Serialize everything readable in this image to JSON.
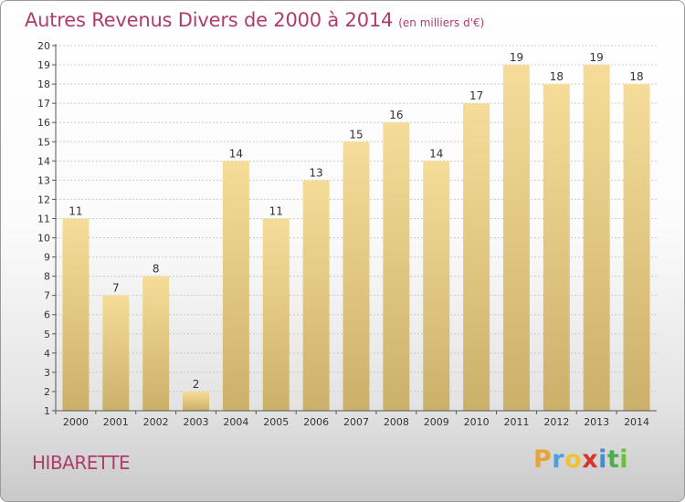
{
  "header": {
    "title": "Autres Revenus Divers de 2000 à 2014",
    "subtitle": "(en milliers d'€)"
  },
  "footer": {
    "town": "HIBARETTE",
    "logo_letters": [
      "P",
      "r",
      "o",
      "x",
      "i",
      "t",
      "i"
    ],
    "logo_colors": [
      "#e8a23a",
      "#4aa0d8",
      "#f0c23a",
      "#d9342b",
      "#3f8fd6",
      "#4cae4c",
      "#6bbf3a"
    ]
  },
  "colors": {
    "title": "#b03c6a",
    "bar_light": "#f5dd99",
    "bar_dark": "#cbb06a",
    "grid": "#cccccc"
  },
  "chart_data": {
    "type": "bar",
    "title": "Autres Revenus Divers de 2000 à 2014",
    "subtitle": "(en milliers d'€)",
    "categories": [
      "2000",
      "2001",
      "2002",
      "2003",
      "2004",
      "2005",
      "2006",
      "2007",
      "2008",
      "2009",
      "2010",
      "2011",
      "2012",
      "2013",
      "2014"
    ],
    "values": [
      11,
      7,
      8,
      2,
      14,
      11,
      13,
      15,
      16,
      14,
      17,
      19,
      18,
      19,
      18
    ],
    "ylim": [
      1,
      20
    ],
    "yticks": [
      1,
      2,
      3,
      4,
      5,
      6,
      7,
      8,
      9,
      10,
      11,
      12,
      13,
      14,
      15,
      16,
      17,
      18,
      19,
      20
    ],
    "grid": true,
    "data_labels": true
  }
}
